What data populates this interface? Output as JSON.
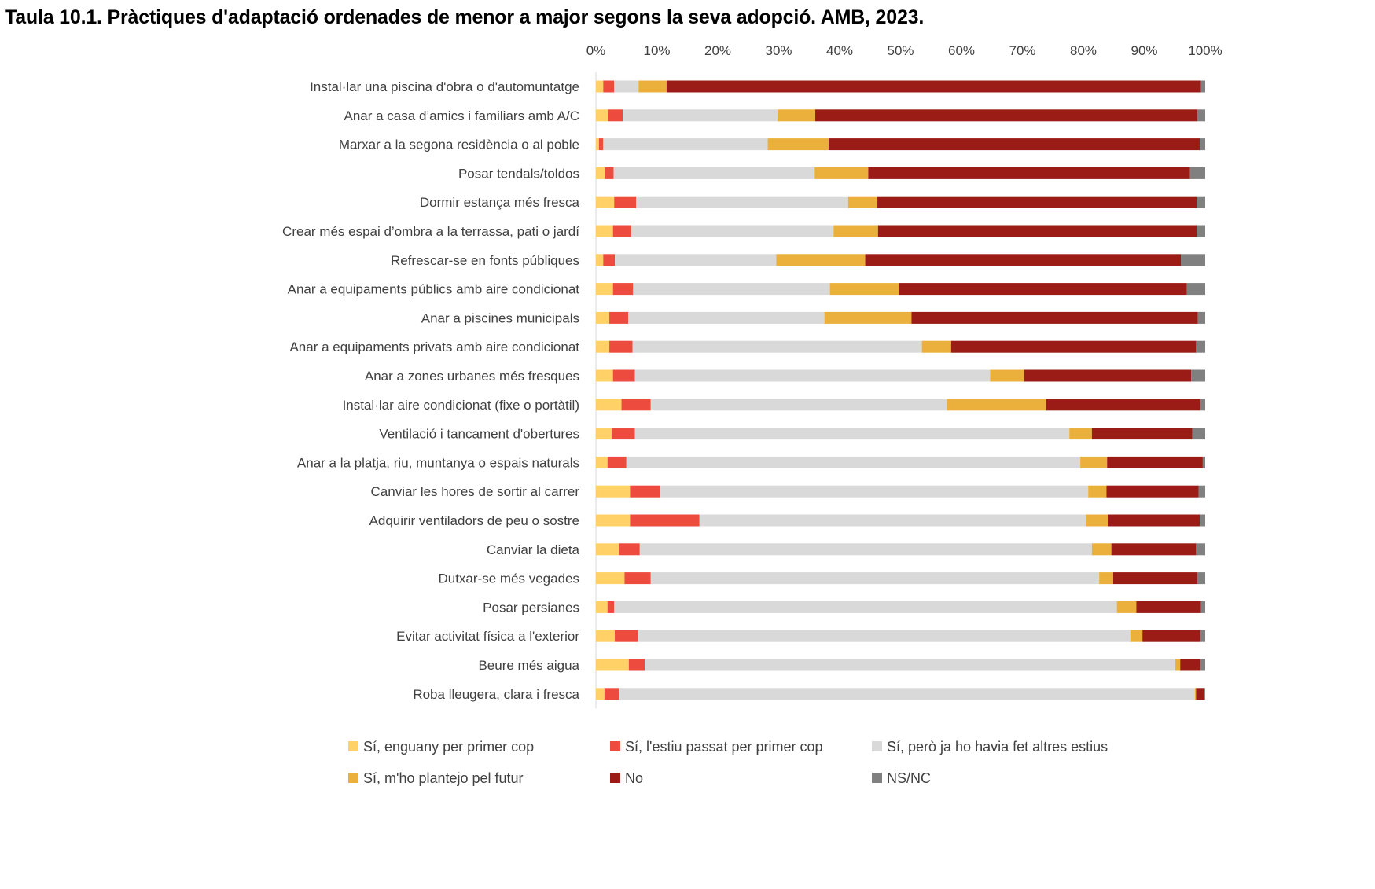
{
  "title": "Taula 10.1. Pràctiques d'adaptació ordenades de menor a major segons la seva adopció. AMB, 2023.",
  "chart_data": {
    "type": "bar",
    "orientation": "horizontal",
    "stacked": "percent",
    "xlim": [
      0,
      100
    ],
    "ticks": [
      "0%",
      "10%",
      "20%",
      "30%",
      "40%",
      "50%",
      "60%",
      "70%",
      "80%",
      "90%",
      "100%"
    ],
    "grid": false,
    "legend_position": "bottom",
    "categories": [
      "Instal·lar una piscina d'obra o d'automuntatge",
      "Anar a casa d’amics i familiars amb A/C",
      "Marxar a la segona residència o al poble",
      "Posar tendals/toldos",
      "Dormir estança més fresca",
      "Crear més espai d’ombra a la terrassa, pati o jardí",
      "Refrescar-se en fonts públiques",
      "Anar a equipaments públics amb aire condicionat",
      "Anar a piscines municipals",
      "Anar a equipaments privats amb aire condicionat",
      "Anar a zones urbanes més fresques",
      "Instal·lar aire condicionat (fixe o portàtil)",
      "Ventilació i tancament d'obertures",
      "Anar a la platja, riu, muntanya o espais naturals",
      "Canviar les hores de sortir al carrer",
      "Adquirir ventiladors de peu o sostre",
      "Canviar la dieta",
      "Dutxar-se més vegades",
      "Posar persianes",
      "Evitar activitat física a l'exterior",
      "Beure més aigua",
      "Roba lleugera, clara i fresca"
    ],
    "series": [
      {
        "name": "Sí, enguany per primer cop",
        "color": "#FFD166",
        "values": [
          1.2,
          2.0,
          0.5,
          1.5,
          3.0,
          2.8,
          1.2,
          2.8,
          2.2,
          2.2,
          2.8,
          4.2,
          2.6,
          1.9,
          5.6,
          5.6,
          3.8,
          4.7,
          1.9,
          3.1,
          5.4,
          1.4
        ]
      },
      {
        "name": "Sí, l'estiu passat per primer cop",
        "color": "#EE4B3F",
        "values": [
          1.8,
          2.4,
          0.7,
          1.4,
          3.6,
          3.0,
          1.9,
          3.3,
          3.1,
          3.8,
          3.6,
          4.8,
          3.8,
          3.1,
          5.0,
          11.4,
          3.4,
          4.3,
          1.1,
          3.8,
          2.6,
          2.4
        ]
      },
      {
        "name": "Sí, però ja ho havia fet altres estius",
        "color": "#D9D9D9",
        "values": [
          4.0,
          25.4,
          27.0,
          33.0,
          34.8,
          33.2,
          26.5,
          32.3,
          32.2,
          47.5,
          58.3,
          48.6,
          71.3,
          74.5,
          70.2,
          63.4,
          74.2,
          73.6,
          82.5,
          80.8,
          87.1,
          94.5
        ]
      },
      {
        "name": "Sí, m'ho plantejo pel futur",
        "color": "#EBB03B",
        "values": [
          4.6,
          6.2,
          10.0,
          8.8,
          4.8,
          7.3,
          14.6,
          11.4,
          14.3,
          4.8,
          5.6,
          16.3,
          3.7,
          4.4,
          3.0,
          3.6,
          3.2,
          2.3,
          3.2,
          2.0,
          0.8,
          0.2
        ]
      },
      {
        "name": "No",
        "color": "#9B1B17",
        "values": [
          87.7,
          62.7,
          60.9,
          52.8,
          52.4,
          52.3,
          51.8,
          47.2,
          47.0,
          40.2,
          27.4,
          25.3,
          16.5,
          15.7,
          15.1,
          15.1,
          13.9,
          13.8,
          10.6,
          9.5,
          3.3,
          1.4
        ]
      },
      {
        "name": "NS/NC",
        "color": "#808080",
        "values": [
          0.7,
          1.3,
          0.9,
          2.5,
          1.4,
          1.4,
          4.0,
          3.0,
          1.2,
          1.5,
          2.3,
          0.8,
          2.1,
          0.4,
          1.1,
          0.9,
          1.5,
          1.3,
          0.7,
          0.8,
          0.8,
          0.1
        ]
      }
    ]
  }
}
